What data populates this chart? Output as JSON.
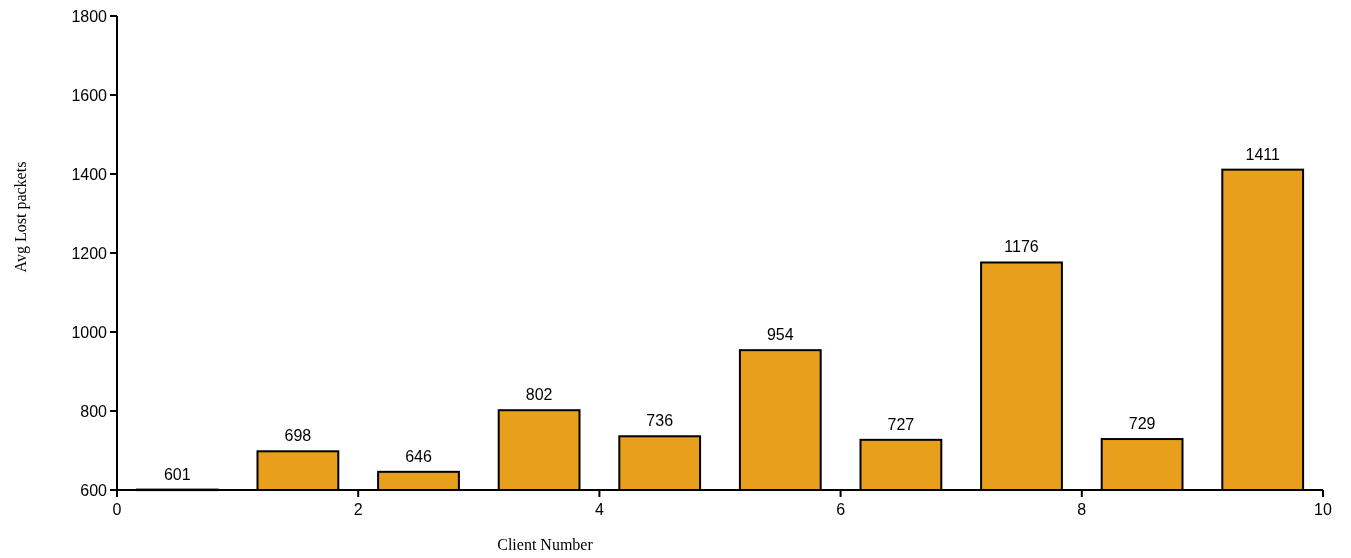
{
  "chart_data": {
    "type": "bar",
    "xlabel": "Client Number",
    "ylabel": "Avg Lost packets",
    "x": [
      0.5,
      1.5,
      2.5,
      3.5,
      4.5,
      5.5,
      6.5,
      7.5,
      8.5,
      9.5
    ],
    "values": [
      601,
      698,
      646,
      802,
      736,
      954,
      727,
      1176,
      729,
      1411
    ],
    "color": "#e89f1c",
    "data_labels": true,
    "xlim": [
      0,
      10
    ],
    "xticks": [
      0,
      2,
      4,
      6,
      8,
      10
    ],
    "ylim": [
      600,
      1800
    ],
    "yticks": [
      600,
      800,
      1000,
      1200,
      1400,
      1600,
      1800
    ],
    "grid": false
  }
}
